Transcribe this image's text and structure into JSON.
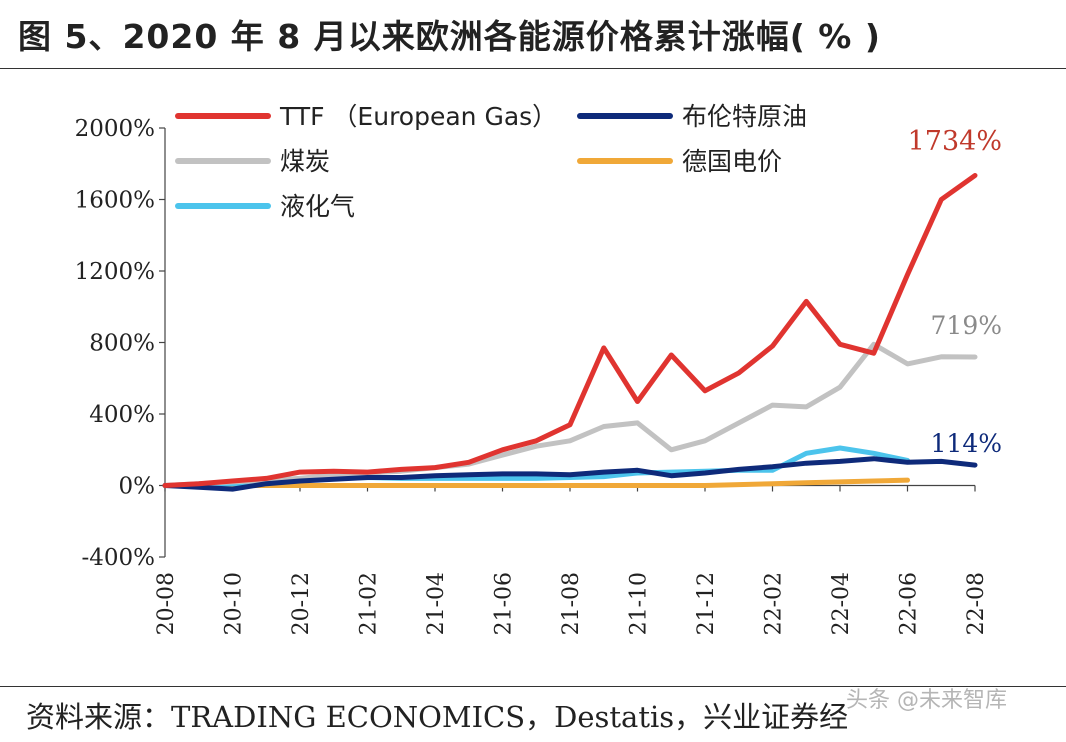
{
  "figure": {
    "title": "图 5、2020 年 8 月以来欧洲各能源价格累计涨幅( % )",
    "source": "资料来源：TRADING ECONOMICS，Destatis，兴业证券经",
    "watermark": "头条 @未来智库"
  },
  "chart_data": {
    "type": "line",
    "title": "",
    "xlabel": "",
    "ylabel": "",
    "x": [
      "20-08",
      "20-09",
      "20-10",
      "20-11",
      "20-12",
      "21-01",
      "21-02",
      "21-03",
      "21-04",
      "21-05",
      "21-06",
      "21-07",
      "21-08",
      "21-09",
      "21-10",
      "21-11",
      "21-12",
      "22-01",
      "22-02",
      "22-03",
      "22-04",
      "22-05",
      "22-06",
      "22-07",
      "22-08"
    ],
    "x_tick_labels": [
      "20-08",
      "20-10",
      "20-12",
      "21-02",
      "21-04",
      "21-06",
      "21-08",
      "21-10",
      "21-12",
      "22-02",
      "22-04",
      "22-06",
      "22-08"
    ],
    "ylim": [
      -400,
      2000
    ],
    "y_ticks": [
      -400,
      0,
      400,
      800,
      1200,
      1600,
      2000
    ],
    "y_tick_labels": [
      "-400%",
      "0%",
      "400%",
      "800%",
      "1200%",
      "1600%",
      "2000%"
    ],
    "grid": false,
    "legend_position": "top",
    "series": [
      {
        "name": "TTF （European Gas）",
        "color": "#e03430",
        "values": [
          0,
          10,
          25,
          40,
          75,
          80,
          75,
          90,
          100,
          130,
          200,
          250,
          340,
          770,
          470,
          730,
          530,
          630,
          780,
          1030,
          790,
          740,
          1180,
          1600,
          1734
        ]
      },
      {
        "name": "布伦特原油",
        "color": "#0e2a7a",
        "values": [
          0,
          -10,
          -20,
          10,
          25,
          35,
          45,
          45,
          55,
          60,
          65,
          65,
          60,
          75,
          85,
          55,
          70,
          90,
          105,
          125,
          135,
          150,
          130,
          135,
          114
        ]
      },
      {
        "name": "煤炭",
        "color": "#c2c2c2",
        "values": [
          0,
          10,
          20,
          30,
          40,
          60,
          70,
          80,
          100,
          120,
          170,
          220,
          250,
          330,
          350,
          200,
          250,
          350,
          450,
          440,
          550,
          790,
          680,
          720,
          719
        ]
      },
      {
        "name": "德国电价",
        "color": "#f0a838",
        "values": [
          0,
          0,
          0,
          0,
          0,
          0,
          0,
          0,
          0,
          0,
          0,
          0,
          0,
          0,
          0,
          0,
          0,
          5,
          10,
          15,
          20,
          25,
          30,
          null,
          null
        ]
      },
      {
        "name": "液化气",
        "color": "#4cc4ec",
        "values": [
          0,
          5,
          10,
          20,
          30,
          40,
          45,
          40,
          40,
          40,
          40,
          40,
          45,
          50,
          70,
          75,
          80,
          85,
          85,
          180,
          210,
          180,
          140,
          null,
          null
        ]
      }
    ],
    "annotations": [
      {
        "text": "1734%",
        "series": "TTF （European Gas）",
        "color": "#c0392b"
      },
      {
        "text": "719%",
        "series": "煤炭",
        "color": "#8a8a8a"
      },
      {
        "text": "114%",
        "series": "布伦特原油",
        "color": "#0e2a7a"
      }
    ]
  }
}
